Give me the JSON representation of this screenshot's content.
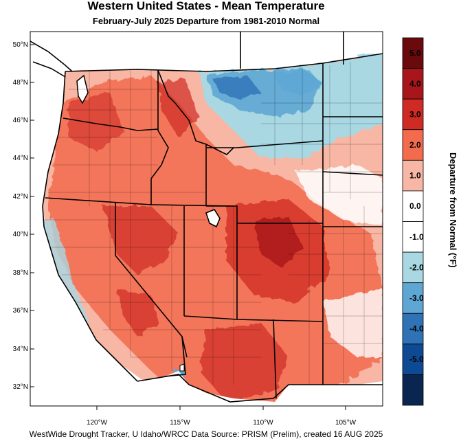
{
  "title": "Western United States - Mean Temperature",
  "subtitle": "February-July 2025  Departure from 1981-2010 Normal",
  "footer": "WestWide Drought Tracker, U Idaho/WRCC Data Source: PRISM (Prelim), created 16 AUG 2025",
  "map": {
    "lat_ticks": [
      "50°N",
      "48°N",
      "46°N",
      "44°N",
      "42°N",
      "40°N",
      "38°N",
      "36°N",
      "34°N",
      "32°N"
    ],
    "lon_ticks": [
      "120°W",
      "115°W",
      "110°W",
      "105°W"
    ]
  },
  "legend": {
    "title": "Departure from Normal (°F)",
    "bins": [
      {
        "label": "5.0",
        "color": "#6b0a0d"
      },
      {
        "label": "4.0",
        "color": "#a8161b"
      },
      {
        "label": "3.0",
        "color": "#cf2a23"
      },
      {
        "label": "2.0",
        "color": "#f26b4d"
      },
      {
        "label": "1.0",
        "color": "#f8b6a4"
      },
      {
        "label": "0.0",
        "color": "#ffffff"
      },
      {
        "label": "-1.0",
        "color": "#ffffff"
      },
      {
        "label": "-2.0",
        "color": "#a9d8e2"
      },
      {
        "label": "-3.0",
        "color": "#5ea7d4"
      },
      {
        "label": "-4.0",
        "color": "#2f73b6"
      },
      {
        "label": "-5.0",
        "color": "#0e4a93"
      },
      {
        "label": "",
        "color": "#0a2650"
      }
    ]
  }
}
